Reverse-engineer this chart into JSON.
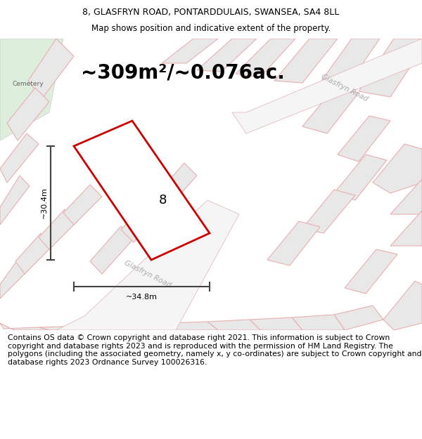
{
  "title_line1": "8, GLASFRYN ROAD, PONTARDDULAIS, SWANSEA, SA4 8LL",
  "title_line2": "Map shows position and indicative extent of the property.",
  "area_text": "~309m²/~0.076ac.",
  "label_8": "8",
  "dim_width": "~34.8m",
  "dim_height": "~30.4m",
  "cemetery_label": "Cemetery",
  "glasfryn_road_label1": "Glasfryn Road",
  "glasfryn_road_label2": "Glasfryn Road",
  "footer_text": "Contains OS data © Crown copyright and database right 2021. This information is subject to Crown copyright and database rights 2023 and is reproduced with the permission of HM Land Registry. The polygons (including the associated geometry, namely x, y co-ordinates) are subject to Crown copyright and database rights 2023 Ordnance Survey 100026316.",
  "map_bg": "#ffffff",
  "cemetery_color": "#ddeedd",
  "parcel_fill": "#e8e8e8",
  "parcel_edge": "#e8b0b0",
  "plot_stroke": "#cc0000",
  "plot_fill": "#ffffff",
  "dim_line_color": "#444444",
  "title_fontsize": 9,
  "footer_fontsize": 7.8,
  "area_fontsize": 20
}
